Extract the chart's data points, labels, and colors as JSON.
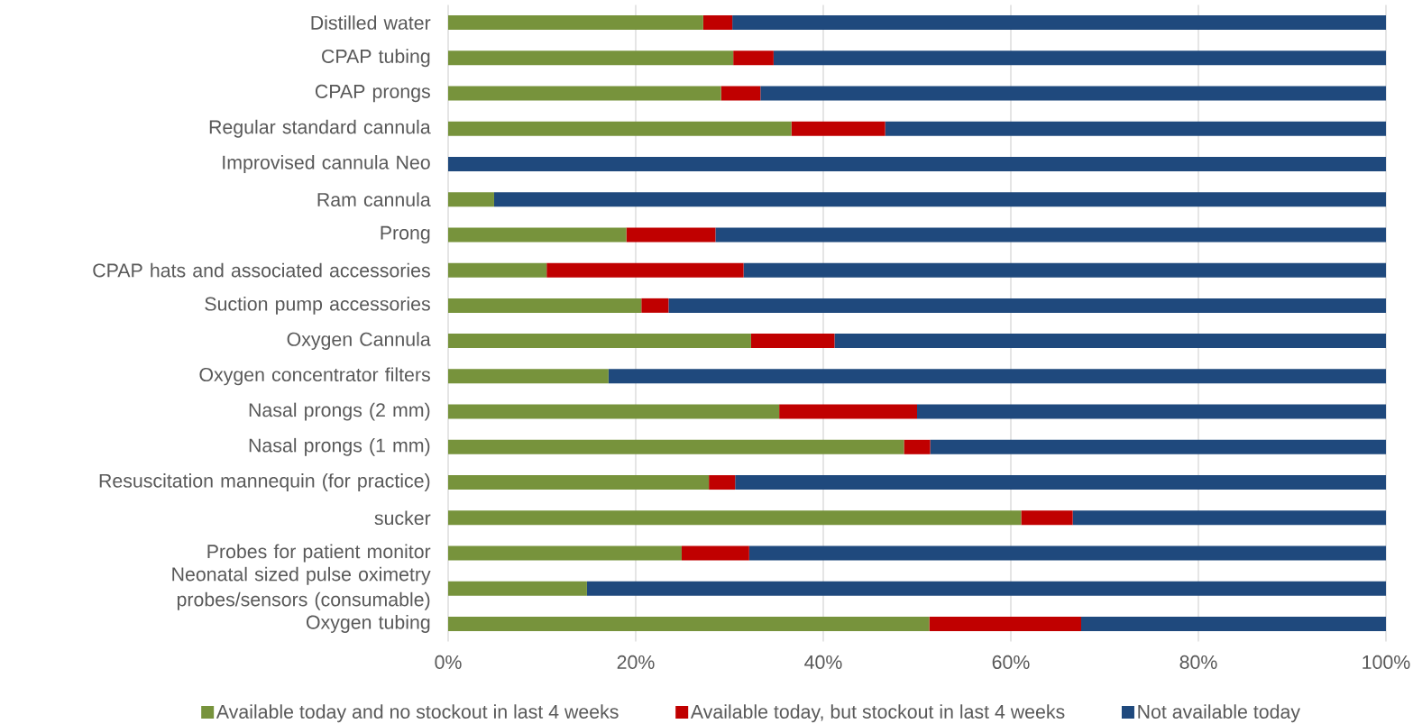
{
  "chart_data": {
    "type": "bar",
    "orientation": "horizontal",
    "stacked": true,
    "categories": [
      "Distilled water",
      "CPAP tubing",
      "CPAP prongs",
      "Regular standard cannula",
      "Improvised cannula Neo",
      "Ram cannula",
      "Prong",
      "CPAP hats and associated accessories",
      "Suction pump accessories",
      "Oxygen Cannula",
      "Oxygen concentrator filters",
      "Nasal prongs (2 mm)",
      "Nasal prongs (1 mm)",
      "Resuscitation mannequin (for practice)",
      "sucker",
      "Probes for patient monitor",
      "Neonatal sized pulse oximetry probes/sensors (consumable)",
      "Oxygen tubing"
    ],
    "series": [
      {
        "name": "Available today and no stockout in last 4 weeks",
        "color": "#77933c",
        "values": [
          27.2,
          30.4,
          29.1,
          36.6,
          0,
          4.9,
          19.0,
          10.5,
          20.6,
          32.3,
          17.1,
          35.3,
          48.6,
          27.8,
          61.1,
          24.9,
          14.8,
          51.3
        ]
      },
      {
        "name": "Available today, but stockout in last 4 weeks",
        "color": "#c00000",
        "values": [
          3.1,
          4.3,
          4.2,
          10.0,
          0,
          0,
          9.5,
          21.0,
          2.9,
          8.9,
          0,
          14.7,
          2.8,
          2.8,
          5.5,
          7.2,
          0,
          16.2
        ]
      },
      {
        "name": "Not available today",
        "color": "#1f497d",
        "values": [
          69.7,
          65.3,
          66.7,
          53.4,
          100,
          95.1,
          71.5,
          68.5,
          76.5,
          58.8,
          82.9,
          50.0,
          48.6,
          69.4,
          33.4,
          67.9,
          85.2,
          32.5
        ]
      }
    ],
    "xlim": [
      0,
      100
    ],
    "xticks": [
      {
        "value": 0,
        "label": "0%"
      },
      {
        "value": 20,
        "label": "20%"
      },
      {
        "value": 40,
        "label": "40%"
      },
      {
        "value": 60,
        "label": "60%"
      },
      {
        "value": 80,
        "label": "80%"
      },
      {
        "value": 100,
        "label": "100%"
      }
    ],
    "grid": "x",
    "legend": "bottom"
  }
}
